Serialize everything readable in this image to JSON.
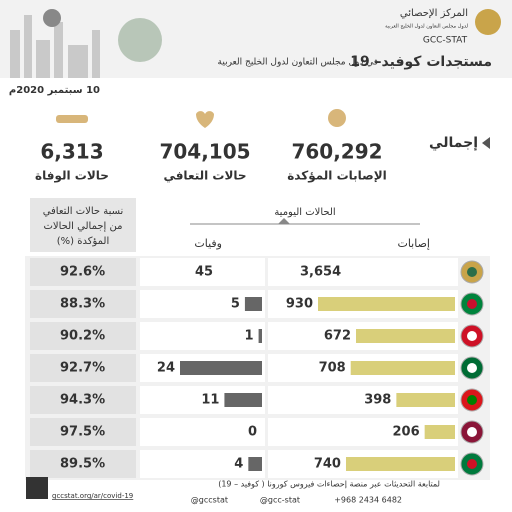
{
  "header": {
    "title": "مستجدات كوفيد– 19",
    "subtitle": "في دول مجلس التعاون لدول الخليج العربية",
    "org_name": "المركز الإحصائي",
    "org_subtitle": "لدول مجلس التعاون لدول الخليج العربية",
    "org_short": "GCC-STAT"
  },
  "date": "10 سبتمبر 2020م",
  "totals": {
    "label": "إجمالي",
    "items": [
      {
        "value": "760,292",
        "label": "الإصابات المؤكدة"
      },
      {
        "value": "704,105",
        "label": "حالات التعافي"
      },
      {
        "value": "6,313",
        "label": "حالات الوفاة"
      }
    ]
  },
  "table": {
    "daily_header": "الحالات اليومية",
    "cases_header": "إصابات",
    "deaths_header": "وفيات",
    "recovery_header": [
      "نسبة حالات التعافي",
      "من إجمالي الحالات",
      "المؤكدة (%)"
    ],
    "rows": [
      {
        "cases": "3,654",
        "deaths": 45,
        "recovery": "92.6%"
      },
      {
        "cases": 930,
        "deaths": 5,
        "recovery": "88.3%"
      },
      {
        "cases": 672,
        "deaths": 1,
        "recovery": "90.2%"
      },
      {
        "cases": 708,
        "deaths": 24,
        "recovery": "92.7%"
      },
      {
        "cases": 398,
        "deaths": 11,
        "recovery": "94.3%"
      },
      {
        "cases": 206,
        "deaths": 0,
        "recovery": "97.5%"
      },
      {
        "cases": 740,
        "deaths": 4,
        "recovery": "89.5%"
      }
    ]
  },
  "footer": {
    "note": "لمتابعة التحديثات عبر منصة إحصاءات فيروس كورونا ( كوفيد – 19)",
    "url": "gccstat.org/ar/covid-19",
    "contacts": [
      "+968 2434 6482",
      "@gcc-stat",
      "@gccstat"
    ]
  }
}
